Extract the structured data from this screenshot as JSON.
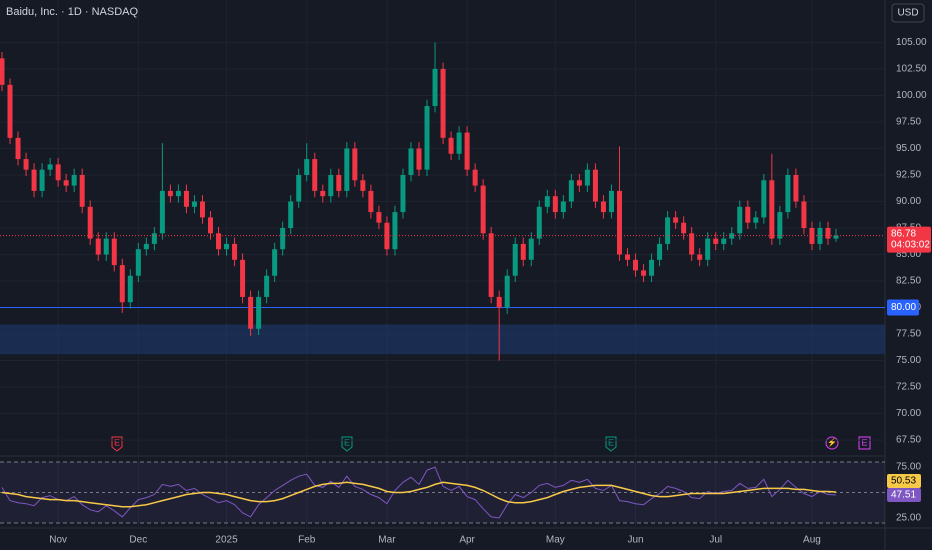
{
  "chart_data": {
    "type": "candlestick",
    "title": "Baidu, Inc. · 1D · NASDAQ",
    "currency": "USD",
    "categories": [
      null,
      null,
      null,
      null,
      null,
      null,
      null,
      "Nov",
      null,
      null,
      null,
      null,
      null,
      null,
      null,
      null,
      null,
      "Dec",
      null,
      null,
      null,
      null,
      null,
      null,
      null,
      null,
      null,
      null,
      "2025",
      null,
      null,
      null,
      null,
      null,
      null,
      null,
      null,
      null,
      "Feb",
      null,
      null,
      null,
      null,
      null,
      null,
      null,
      null,
      null,
      "Mar",
      null,
      null,
      null,
      null,
      null,
      null,
      null,
      null,
      null,
      "Apr",
      null,
      null,
      null,
      null,
      null,
      null,
      null,
      null,
      null,
      null,
      "May",
      null,
      null,
      null,
      null,
      null,
      null,
      null,
      null,
      null,
      "Jun",
      null,
      null,
      null,
      null,
      null,
      null,
      null,
      null,
      null,
      "Jul",
      null,
      null,
      null,
      null,
      null,
      null,
      null,
      null,
      null,
      null,
      null,
      "Aug",
      null,
      null,
      null
    ],
    "open": [
      103.5,
      101,
      96,
      94,
      93,
      91,
      93,
      93.5,
      92,
      91.5,
      92.5,
      89.5,
      86.5,
      85,
      86.5,
      84,
      80.5,
      83,
      85.5,
      86,
      87,
      91,
      90.5,
      91,
      89.5,
      90,
      88.5,
      87,
      85.5,
      86,
      84.5,
      81,
      78,
      81,
      83,
      85.5,
      87.5,
      90,
      92.5,
      94,
      91,
      90.5,
      92.5,
      91,
      95,
      92,
      91,
      89,
      88,
      85.5,
      89,
      92.5,
      95,
      93,
      99,
      102.5,
      96,
      94.5,
      96.5,
      93,
      91.5,
      87,
      81,
      80,
      83,
      86,
      84.5,
      86.5,
      89.5,
      90.5,
      89,
      90,
      92,
      91.5,
      93,
      90,
      89,
      91,
      85,
      84.5,
      83.5,
      83,
      84.5,
      86,
      88.5,
      88,
      87,
      85,
      84.5,
      86.5,
      86,
      86.5,
      87,
      89.5,
      88,
      88.5,
      92,
      86.5,
      89,
      92.5,
      90,
      87.5,
      86,
      87.5,
      86.5
    ],
    "high": [
      104.1,
      101.6,
      96.6,
      94.6,
      93.6,
      93.6,
      94.1,
      94.1,
      92.6,
      93.1,
      93.1,
      90.1,
      87.1,
      87.1,
      87.1,
      84.6,
      83.6,
      86.1,
      86.6,
      87.6,
      95.5,
      91.6,
      91.6,
      91.6,
      90.6,
      90.6,
      89.1,
      87.6,
      86.6,
      86.6,
      85.1,
      81.6,
      81.6,
      83.6,
      86.1,
      88.1,
      90.6,
      93.1,
      95.5,
      94.6,
      91.6,
      93.1,
      93.1,
      95.6,
      95.6,
      92.6,
      91.6,
      89.6,
      88.6,
      89.6,
      93.1,
      95.6,
      95.6,
      99.6,
      105,
      103.1,
      96.6,
      97.1,
      97.1,
      93.6,
      92.1,
      87.6,
      81.6,
      83.6,
      86.6,
      86.6,
      87.1,
      90.1,
      91.1,
      91.1,
      90.6,
      92.6,
      92.6,
      93.6,
      93.6,
      90.6,
      91.6,
      95.2,
      85.6,
      85.1,
      84.1,
      85.1,
      86.6,
      89.1,
      89.1,
      88.6,
      87.6,
      85.6,
      87.1,
      87.1,
      87.1,
      87.6,
      90.1,
      90.1,
      89.1,
      92.6,
      94.5,
      89.6,
      93.1,
      93.1,
      90.6,
      88.1,
      88.1,
      88.1,
      87.4
    ],
    "low": [
      100.4,
      95.4,
      93.4,
      92.4,
      90.4,
      90.4,
      92.4,
      91.4,
      90.9,
      90.9,
      88.9,
      85.9,
      84.4,
      84.4,
      83.4,
      79.5,
      79.9,
      82.4,
      84.9,
      85.4,
      86.4,
      89.9,
      89.9,
      88.9,
      88.9,
      87.9,
      86.4,
      84.9,
      84.9,
      83.9,
      80.4,
      77.3,
      77.4,
      80.4,
      82.4,
      84.9,
      86.9,
      89.4,
      91.9,
      90.4,
      89.9,
      89.9,
      90.4,
      90.4,
      91.4,
      90.4,
      88.4,
      87.4,
      84.9,
      84.9,
      88.4,
      91.9,
      92.4,
      92.4,
      98.4,
      95.4,
      93.9,
      93.9,
      92.4,
      90.9,
      86.4,
      80.4,
      75,
      79.4,
      82.4,
      83.9,
      83.9,
      85.9,
      88.9,
      88.4,
      88.4,
      89.4,
      90.9,
      90.9,
      89.4,
      88.4,
      88.4,
      84.4,
      83.9,
      82.9,
      82.4,
      82.4,
      83.9,
      85.4,
      87.4,
      86.4,
      84.4,
      83.9,
      83.9,
      85.4,
      85.4,
      85.9,
      86.4,
      87.4,
      87.4,
      87.9,
      85.9,
      85.9,
      88.4,
      89.4,
      86.9,
      85.4,
      85.4,
      85.9,
      86.2
    ],
    "close": [
      101,
      96,
      94,
      93,
      91,
      93,
      93.5,
      92,
      91.5,
      92.5,
      89.5,
      86.5,
      85,
      86.5,
      84,
      80.5,
      83,
      85.5,
      86,
      87,
      91,
      90.5,
      91,
      89.5,
      90,
      88.5,
      87,
      85.5,
      86,
      84.5,
      81,
      78,
      81,
      83,
      85.5,
      87.5,
      90,
      92.5,
      94,
      91,
      90.5,
      92.5,
      91,
      95,
      92,
      91,
      89,
      88,
      85.5,
      89,
      92.5,
      95,
      93,
      99,
      102.5,
      96,
      94.5,
      96.5,
      93,
      91.5,
      87,
      81,
      80,
      83,
      86,
      84.5,
      86.5,
      89.5,
      90.5,
      89,
      90,
      92,
      91.5,
      93,
      90,
      89,
      91,
      85,
      84.5,
      83.5,
      83,
      84.5,
      86,
      88.5,
      88,
      87,
      85,
      84.5,
      86.5,
      86,
      86.5,
      87,
      89.5,
      88,
      88.5,
      92,
      86.5,
      89,
      92.5,
      90,
      87.5,
      86,
      87.5,
      86.5,
      86.78
    ],
    "up_color": "#089981",
    "down_color": "#f23645",
    "ylim": [
      66,
      109
    ],
    "yticks": [
      {
        "value": 67.5,
        "label": "67.50"
      },
      {
        "value": 70,
        "label": "70.00"
      },
      {
        "value": 72.5,
        "label": "72.50"
      },
      {
        "value": 75,
        "label": "75.00"
      },
      {
        "value": 77.5,
        "label": "77.50"
      },
      {
        "value": 80,
        "label": "80.00"
      },
      {
        "value": 82.5,
        "label": "82.50"
      },
      {
        "value": 85,
        "label": "85.00"
      },
      {
        "value": 87.5,
        "label": "87.50"
      },
      {
        "value": 90,
        "label": "90.00"
      },
      {
        "value": 92.5,
        "label": "92.50"
      },
      {
        "value": 95,
        "label": "95.00"
      },
      {
        "value": 97.5,
        "label": "97.50"
      },
      {
        "value": 100,
        "label": "100.00"
      },
      {
        "value": 102.5,
        "label": "102.50"
      },
      {
        "value": 105,
        "label": "105.00"
      }
    ],
    "last_price": 86.78,
    "countdown": "04:03:02",
    "hline": {
      "value": 80,
      "label": "80.00",
      "color": "#2962ff"
    },
    "zone": [
      75.6,
      78.4
    ],
    "events": [
      "E",
      "E",
      "E",
      "⚡",
      "E"
    ],
    "rsi": {
      "ylim": [
        20,
        80
      ],
      "yticks": [
        {
          "value": 25,
          "label": "25.00"
        },
        {
          "value": 50,
          "label": "50.00"
        },
        {
          "value": 75,
          "label": "75.00"
        }
      ],
      "series": [
        {
          "color": "#7e57c2",
          "values": [
            55,
            42,
            40,
            39,
            37,
            45,
            47,
            43,
            42,
            46,
            38,
            33,
            31,
            37,
            32,
            26,
            35,
            43,
            45,
            48,
            58,
            56,
            58,
            52,
            54,
            48,
            44,
            40,
            42,
            38,
            30,
            26,
            38,
            45,
            52,
            57,
            62,
            66,
            68,
            57,
            55,
            61,
            55,
            66,
            56,
            53,
            48,
            45,
            39,
            52,
            60,
            65,
            58,
            72,
            75,
            56,
            52,
            56,
            46,
            43,
            34,
            26,
            25,
            38,
            48,
            45,
            50,
            57,
            59,
            55,
            57,
            62,
            60,
            63,
            54,
            52,
            57,
            42,
            41,
            39,
            38,
            44,
            49,
            56,
            54,
            51,
            45,
            44,
            51,
            49,
            51,
            52,
            59,
            54,
            55,
            63,
            46,
            53,
            62,
            55,
            49,
            46,
            51,
            48,
            47.51
          ]
        },
        {
          "color": "#f7c948",
          "values": [
            50,
            49,
            48,
            46,
            45,
            44,
            43,
            43,
            42,
            42,
            41,
            40,
            39,
            38,
            37,
            36,
            36,
            37,
            38,
            40,
            42,
            44,
            46,
            48,
            49,
            50,
            50,
            49,
            48,
            46,
            44,
            42,
            41,
            41,
            42,
            44,
            47,
            50,
            53,
            56,
            58,
            59,
            59,
            60,
            59,
            58,
            56,
            54,
            51,
            50,
            50,
            51,
            53,
            55,
            58,
            60,
            59,
            58,
            57,
            55,
            52,
            48,
            44,
            41,
            40,
            40,
            41,
            43,
            45,
            48,
            51,
            53,
            55,
            56,
            57,
            57,
            57,
            55,
            53,
            51,
            49,
            47,
            46,
            46,
            47,
            48,
            49,
            49,
            49,
            49,
            49,
            50,
            51,
            52,
            53,
            54,
            54,
            54,
            54,
            53,
            53,
            52,
            51,
            51,
            50.53
          ]
        }
      ]
    }
  }
}
